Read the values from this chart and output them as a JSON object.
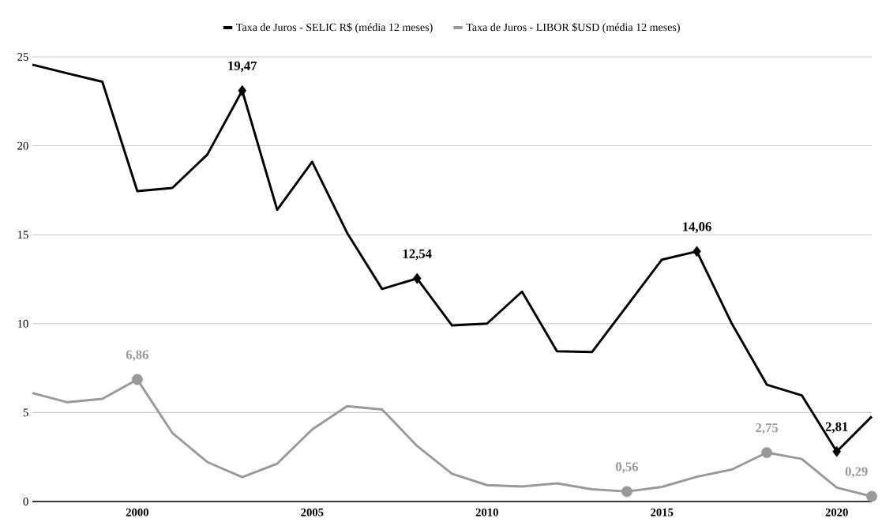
{
  "chart_data": {
    "type": "line",
    "x": [
      1997,
      1998,
      1999,
      2000,
      2001,
      2002,
      2003,
      2004,
      2005,
      2006,
      2007,
      2008,
      2009,
      2010,
      2011,
      2012,
      2013,
      2014,
      2015,
      2016,
      2017,
      2018,
      2019,
      2020,
      2021
    ],
    "series": [
      {
        "name": "Taxa de Juros - SELIC R$ (média 12 meses)",
        "color": "#000000",
        "values": [
          24.56,
          24.07,
          23.6,
          17.45,
          17.63,
          19.5,
          23.1,
          16.4,
          19.1,
          15.1,
          11.95,
          12.54,
          9.9,
          10.0,
          11.8,
          8.45,
          8.4,
          11.0,
          13.6,
          14.06,
          10.0,
          6.57,
          5.97,
          2.81,
          4.78
        ],
        "value_labels": [
          null,
          null,
          null,
          null,
          null,
          null,
          null,
          null,
          null,
          null,
          null,
          "12,54",
          null,
          null,
          null,
          null,
          null,
          null,
          null,
          "14,06",
          null,
          null,
          null,
          "2,81",
          null
        ]
      },
      {
        "name": "Taxa de Juros - LIBOR $USD (média 12 meses)",
        "color": "#999999",
        "values": [
          6.1,
          5.58,
          5.77,
          6.86,
          3.86,
          2.22,
          1.37,
          2.13,
          4.05,
          5.36,
          5.17,
          3.12,
          1.56,
          0.92,
          0.84,
          1.02,
          0.69,
          0.56,
          0.82,
          1.39,
          1.8,
          2.75,
          2.39,
          0.78,
          0.29
        ],
        "value_labels": [
          null,
          null,
          null,
          "6,86",
          null,
          null,
          null,
          null,
          null,
          null,
          null,
          null,
          null,
          null,
          null,
          null,
          null,
          "0,56",
          null,
          null,
          null,
          "2,75",
          null,
          null,
          "0,29"
        ]
      }
    ],
    "annotations": [
      {
        "text": "19,47",
        "x": 2003,
        "y": 23.1
      }
    ],
    "xlim": [
      1997,
      2021
    ],
    "xticks": [
      2000,
      2005,
      2010,
      2015,
      2020
    ],
    "ylim": [
      0,
      25
    ],
    "yticks": [
      0,
      5,
      10,
      15,
      20,
      25
    ],
    "grid": "y",
    "legend": "top"
  }
}
